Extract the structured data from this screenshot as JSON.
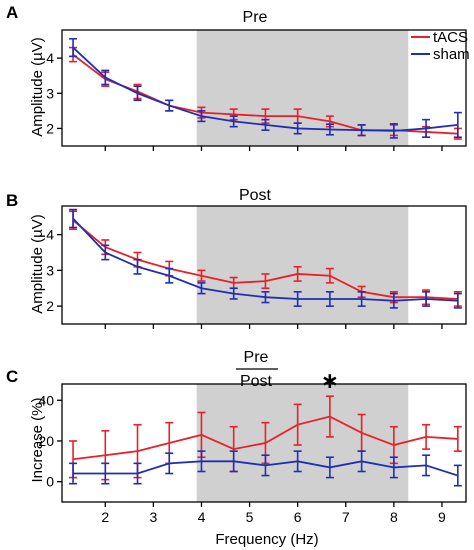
{
  "figure": {
    "x_label": "Frequency (Hz)",
    "x_ticks": [
      2,
      3,
      4,
      5,
      6,
      7,
      8,
      9
    ],
    "legend": [
      {
        "label": "tACS",
        "color": "#e8202a"
      },
      {
        "label": "sham",
        "color": "#1f2fb5"
      }
    ],
    "colors": {
      "tacs": "#e8202a",
      "sham": "#1f2fb5",
      "shade": "#d0d0d0",
      "axis": "#000000"
    },
    "shaded_band_hz": [
      3.9,
      8.3
    ]
  },
  "chart_data": [
    {
      "letter": "A",
      "type": "line",
      "title": "Pre",
      "ylabel": "Amplitude (µV)",
      "xlim": [
        1.1,
        9.5
      ],
      "ylim": [
        1.5,
        4.8
      ],
      "y_ticks": [
        2,
        3,
        4
      ],
      "x": [
        1.33,
        2.0,
        2.67,
        3.33,
        4.0,
        4.67,
        5.33,
        6.0,
        6.67,
        7.33,
        8.0,
        8.67,
        9.33
      ],
      "series": [
        {
          "name": "tACS",
          "color": "#e8202a",
          "values": [
            4.1,
            3.4,
            3.05,
            2.65,
            2.45,
            2.4,
            2.35,
            2.35,
            2.2,
            1.95,
            1.95,
            1.9,
            1.85
          ],
          "errors": [
            0.2,
            0.2,
            0.2,
            0.15,
            0.15,
            0.15,
            0.2,
            0.2,
            0.15,
            0.15,
            0.15,
            0.15,
            0.15
          ]
        },
        {
          "name": "sham",
          "color": "#1f2fb5",
          "values": [
            4.3,
            3.45,
            3.0,
            2.65,
            2.35,
            2.2,
            2.1,
            2.0,
            1.97,
            1.95,
            1.93,
            2.0,
            2.1
          ],
          "errors": [
            0.25,
            0.2,
            0.2,
            0.15,
            0.15,
            0.15,
            0.15,
            0.15,
            0.15,
            0.15,
            0.2,
            0.25,
            0.35
          ]
        }
      ]
    },
    {
      "letter": "B",
      "type": "line",
      "title": "Post",
      "ylabel": "Amplitude (µV)",
      "xlim": [
        1.1,
        9.5
      ],
      "ylim": [
        1.5,
        4.8
      ],
      "y_ticks": [
        2,
        3,
        4
      ],
      "x": [
        1.33,
        2.0,
        2.67,
        3.33,
        4.0,
        4.67,
        5.33,
        6.0,
        6.67,
        7.33,
        8.0,
        8.67,
        9.33
      ],
      "series": [
        {
          "name": "tACS",
          "color": "#e8202a",
          "values": [
            4.4,
            3.65,
            3.3,
            3.05,
            2.85,
            2.65,
            2.7,
            2.9,
            2.85,
            2.4,
            2.25,
            2.25,
            2.2
          ],
          "errors": [
            0.25,
            0.2,
            0.2,
            0.2,
            0.15,
            0.15,
            0.2,
            0.2,
            0.2,
            0.15,
            0.15,
            0.2,
            0.2
          ]
        },
        {
          "name": "sham",
          "color": "#1f2fb5",
          "values": [
            4.45,
            3.5,
            3.1,
            2.85,
            2.5,
            2.35,
            2.25,
            2.2,
            2.2,
            2.2,
            2.15,
            2.2,
            2.15
          ],
          "errors": [
            0.25,
            0.2,
            0.2,
            0.2,
            0.15,
            0.15,
            0.15,
            0.2,
            0.2,
            0.2,
            0.2,
            0.2,
            0.2
          ]
        }
      ]
    },
    {
      "letter": "C",
      "type": "line",
      "title_numerator": "Pre",
      "title_denominator": "Post",
      "ylabel": "Increase (%)",
      "xlim": [
        1.1,
        9.5
      ],
      "ylim": [
        -10,
        48
      ],
      "y_ticks": [
        0,
        20,
        40
      ],
      "significance_marker": "∗",
      "significance_x": 6.67,
      "x": [
        1.33,
        2.0,
        2.67,
        3.33,
        4.0,
        4.67,
        5.33,
        6.0,
        6.67,
        7.33,
        8.0,
        8.67,
        9.33
      ],
      "series": [
        {
          "name": "tACS",
          "color": "#e8202a",
          "values": [
            11,
            13,
            15,
            19,
            23,
            16,
            19,
            28,
            32,
            24,
            18,
            22,
            21
          ],
          "errors": [
            9,
            12,
            13,
            10,
            11,
            11,
            10,
            10,
            10,
            9,
            9,
            6,
            6
          ]
        },
        {
          "name": "sham",
          "color": "#1f2fb5",
          "values": [
            4,
            4,
            4,
            9,
            10,
            10,
            8,
            10,
            7,
            10,
            7,
            8,
            3
          ],
          "errors": [
            5,
            5,
            5,
            5,
            5,
            5,
            5,
            5,
            5,
            5,
            5,
            5,
            5
          ]
        }
      ]
    }
  ]
}
